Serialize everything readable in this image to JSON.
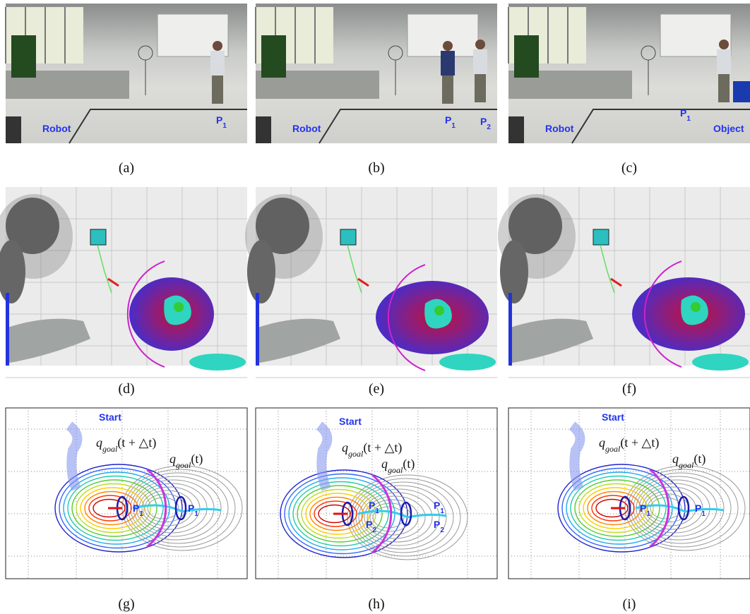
{
  "photos": [
    {
      "caption": "(a)",
      "labels": [
        {
          "text": "Robot"
        },
        {
          "text": "P",
          "sub": "1"
        }
      ]
    },
    {
      "caption": "(b)",
      "labels": [
        {
          "text": "Robot"
        },
        {
          "text": "P",
          "sub": "1"
        },
        {
          "text": "P",
          "sub": "2"
        }
      ]
    },
    {
      "caption": "(c)",
      "labels": [
        {
          "text": "Robot"
        },
        {
          "text": "P",
          "sub": "1"
        },
        {
          "text": "Object"
        }
      ]
    }
  ],
  "maps": [
    {
      "caption": "(d)"
    },
    {
      "caption": "(e)"
    },
    {
      "caption": "(f)"
    }
  ],
  "plots": [
    {
      "caption": "(g)",
      "start": "Start",
      "goal_next": {
        "q": "q",
        "sub": "goal",
        "arg": "(t + △t)"
      },
      "goal_now": {
        "q": "q",
        "sub": "goal",
        "arg": "(t)"
      },
      "labels": [
        {
          "text": "P",
          "sub": "1"
        },
        {
          "text": "P",
          "sub": "1"
        }
      ]
    },
    {
      "caption": "(h)",
      "start": "Start",
      "goal_next": {
        "q": "q",
        "sub": "goal",
        "arg": "(t + △t)"
      },
      "goal_now": {
        "q": "q",
        "sub": "goal",
        "arg": "(t)"
      },
      "labels": [
        {
          "text": "P",
          "sub": "1"
        },
        {
          "text": "P",
          "sub": "2"
        },
        {
          "text": "P",
          "sub": "1"
        },
        {
          "text": "P",
          "sub": "2"
        }
      ]
    },
    {
      "caption": "(i)",
      "start": "Start",
      "goal_next": {
        "q": "q",
        "sub": "goal",
        "arg": "(t + △t)"
      },
      "goal_now": {
        "q": "q",
        "sub": "goal",
        "arg": "(t)"
      },
      "labels": [
        {
          "text": "P",
          "sub": "1"
        },
        {
          "text": "P",
          "sub": "1"
        }
      ]
    }
  ]
}
